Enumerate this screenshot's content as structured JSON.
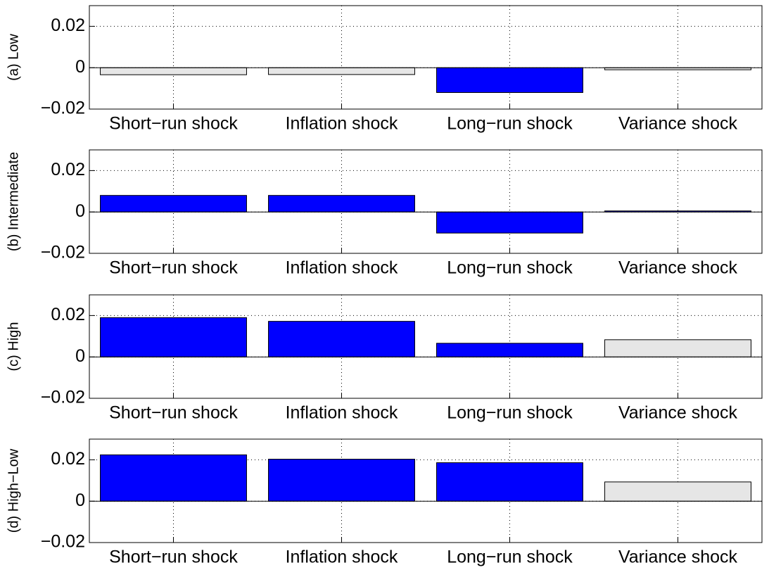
{
  "chart_data": [
    {
      "type": "bar",
      "ylabel": "(a) Low",
      "categories": [
        "Short−run shock",
        "Inflation shock",
        "Long−run shock",
        "Variance shock"
      ],
      "values": [
        -0.0034,
        -0.0033,
        -0.012,
        -0.001
      ],
      "colors": [
        "#e6e6e6",
        "#e6e6e6",
        "#0000ff",
        "#e6e6e6"
      ],
      "ylim": [
        -0.02,
        0.03
      ],
      "yticks": [
        {
          "value": -0.02,
          "label": "−0.02"
        },
        0,
        0.02
      ],
      "grid": true
    },
    {
      "type": "bar",
      "ylabel": "(b) Intermediate",
      "categories": [
        "Short−run shock",
        "Inflation shock",
        "Long−run shock",
        "Variance shock"
      ],
      "values": [
        0.008,
        0.008,
        -0.0102,
        0.0005
      ],
      "colors": [
        "#0000ff",
        "#0000ff",
        "#0000ff",
        "#0000ff"
      ],
      "ylim": [
        -0.02,
        0.03
      ],
      "yticks": [
        {
          "value": -0.02,
          "label": "−0.02"
        },
        0,
        0.02
      ],
      "grid": true
    },
    {
      "type": "bar",
      "ylabel": "(c) High",
      "categories": [
        "Short−run shock",
        "Inflation shock",
        "Long−run shock",
        "Variance shock"
      ],
      "values": [
        0.019,
        0.0172,
        0.0066,
        0.0083
      ],
      "colors": [
        "#0000ff",
        "#0000ff",
        "#0000ff",
        "#e6e6e6"
      ],
      "ylim": [
        -0.02,
        0.03
      ],
      "yticks": [
        {
          "value": -0.02,
          "label": "−0.02"
        },
        0,
        0.02
      ],
      "grid": true
    },
    {
      "type": "bar",
      "ylabel": "(d) High−Low",
      "categories": [
        "Short−run shock",
        "Inflation shock",
        "Long−run shock",
        "Variance shock"
      ],
      "values": [
        0.0224,
        0.0203,
        0.0186,
        0.0093
      ],
      "colors": [
        "#0000ff",
        "#0000ff",
        "#0000ff",
        "#e6e6e6"
      ],
      "ylim": [
        -0.02,
        0.03
      ],
      "yticks": [
        {
          "value": -0.02,
          "label": "−0.02"
        },
        0,
        0.02
      ],
      "grid": true
    }
  ]
}
